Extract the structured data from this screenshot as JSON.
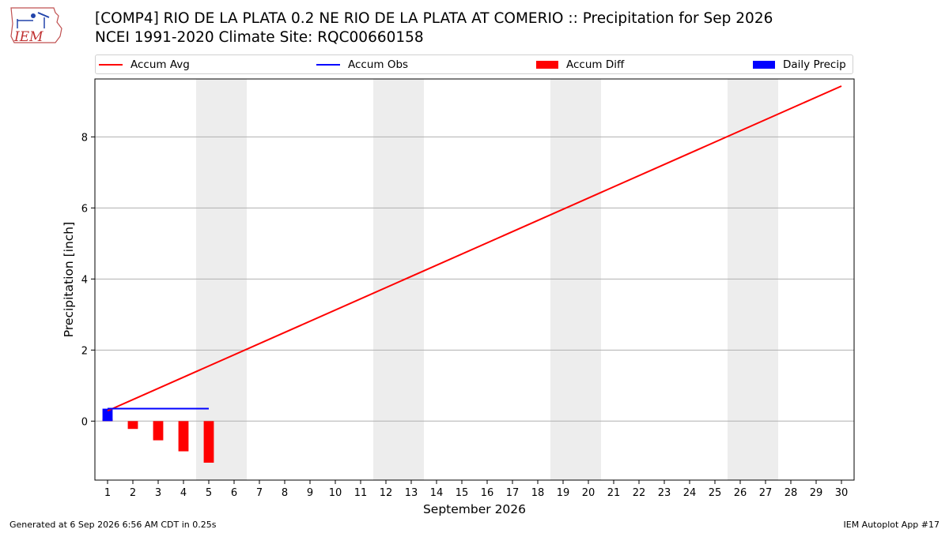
{
  "logo": {
    "text": "IEM"
  },
  "title": {
    "line1": "[COMP4] RIO DE LA PLATA 0.2 NE RIO DE LA PLATA AT COMERIO :: Precipitation for Sep 2026",
    "line2": "NCEI 1991-2020 Climate Site: RQC00660158"
  },
  "legend": [
    {
      "label": "Accum Avg",
      "kind": "line",
      "color": "#ff0000"
    },
    {
      "label": "Accum Obs",
      "kind": "line",
      "color": "#0000ff"
    },
    {
      "label": "Accum Diff",
      "kind": "patch",
      "color": "#ff0000"
    },
    {
      "label": "Daily Precip",
      "kind": "patch",
      "color": "#0000ff"
    }
  ],
  "footer": {
    "left": "Generated at 6 Sep 2026 6:56 AM CDT in 0.25s",
    "right": "IEM Autoplot App #17"
  },
  "chart_data": {
    "type": "bar",
    "xlabel": "September 2026",
    "ylabel": "Precipitation [inch]",
    "xlim": [
      0.5,
      30.5
    ],
    "ylim": [
      -1.66,
      9.63
    ],
    "yticks": [
      0,
      2,
      4,
      6,
      8
    ],
    "grid": "horizontal",
    "legend_position": "top",
    "x": [
      1,
      2,
      3,
      4,
      5,
      6,
      7,
      8,
      9,
      10,
      11,
      12,
      13,
      14,
      15,
      16,
      17,
      18,
      19,
      20,
      21,
      22,
      23,
      24,
      25,
      26,
      27,
      28,
      29,
      30
    ],
    "weekend_spans": [
      [
        4.5,
        6.5
      ],
      [
        11.5,
        13.5
      ],
      [
        18.5,
        20.5
      ],
      [
        25.5,
        27.5
      ]
    ],
    "weekend_color": "#ededed",
    "series": [
      {
        "name": "Accum Avg",
        "type": "line",
        "color": "#ff0000",
        "x": [
          1,
          30
        ],
        "values": [
          0.29,
          9.43
        ]
      },
      {
        "name": "Accum Obs",
        "type": "line",
        "color": "#0000ff",
        "x": [
          1,
          2,
          3,
          4,
          5
        ],
        "values": [
          0.35,
          0.35,
          0.35,
          0.35,
          0.35
        ]
      },
      {
        "name": "Accum Diff",
        "type": "bar",
        "color": "#ff0000",
        "x": [
          1,
          2,
          3,
          4,
          5
        ],
        "values": [
          0.06,
          -0.22,
          -0.54,
          -0.85,
          -1.17
        ]
      },
      {
        "name": "Daily Precip",
        "type": "bar",
        "color": "#0000ff",
        "x": [
          1,
          2,
          3,
          4,
          5
        ],
        "values": [
          0.35,
          0,
          0,
          0,
          0
        ]
      }
    ]
  }
}
